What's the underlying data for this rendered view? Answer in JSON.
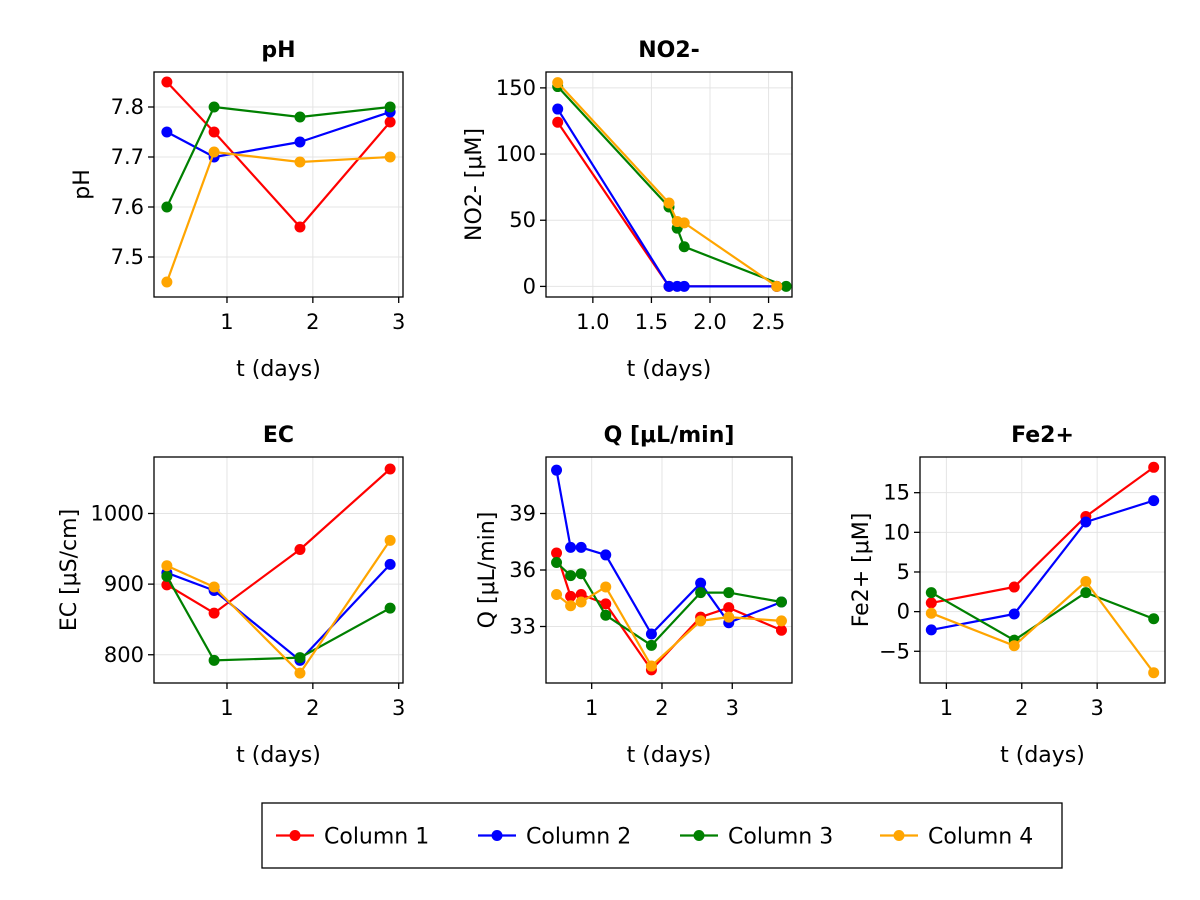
{
  "legend": {
    "placement": "bottom-center",
    "entries": [
      {
        "label": "Column 1",
        "color": "#ff0000"
      },
      {
        "label": "Column 2",
        "color": "#0000ff"
      },
      {
        "label": "Column 3",
        "color": "#008000"
      },
      {
        "label": "Column 4",
        "color": "#ffa500"
      }
    ]
  },
  "chart_data": [
    {
      "type": "line",
      "title": "pH",
      "xlabel": "t (days)",
      "ylabel": "pH",
      "xlim": [
        0.15,
        3.05
      ],
      "ylim": [
        7.42,
        7.87
      ],
      "xticks": [
        {
          "v": 1,
          "label": "1"
        },
        {
          "v": 2,
          "label": "2"
        },
        {
          "v": 3,
          "label": "3"
        }
      ],
      "yticks": [
        {
          "v": 7.5,
          "label": "7.5"
        },
        {
          "v": 7.6,
          "label": "7.6"
        },
        {
          "v": 7.7,
          "label": "7.7"
        },
        {
          "v": 7.8,
          "label": "7.8"
        }
      ],
      "grid": true,
      "series": [
        {
          "name": "Column 1",
          "color": "#ff0000",
          "x": [
            0.3,
            0.85,
            1.85,
            2.9
          ],
          "y": [
            7.85,
            7.75,
            7.56,
            7.77
          ]
        },
        {
          "name": "Column 2",
          "color": "#0000ff",
          "x": [
            0.3,
            0.85,
            1.85,
            2.9
          ],
          "y": [
            7.75,
            7.7,
            7.73,
            7.79
          ]
        },
        {
          "name": "Column 3",
          "color": "#008000",
          "x": [
            0.3,
            0.85,
            1.85,
            2.9
          ],
          "y": [
            7.6,
            7.8,
            7.78,
            7.8
          ]
        },
        {
          "name": "Column 4",
          "color": "#ffa500",
          "x": [
            0.3,
            0.85,
            1.85,
            2.9
          ],
          "y": [
            7.45,
            7.71,
            7.69,
            7.7
          ]
        }
      ]
    },
    {
      "type": "line",
      "title": "NO2-",
      "xlabel": "t (days)",
      "ylabel": "NO2- [μM]",
      "xlim": [
        0.6,
        2.7
      ],
      "ylim": [
        -8,
        162
      ],
      "xticks": [
        {
          "v": 1.0,
          "label": "1.0"
        },
        {
          "v": 1.5,
          "label": "1.5"
        },
        {
          "v": 2.0,
          "label": "2.0"
        },
        {
          "v": 2.5,
          "label": "2.5"
        }
      ],
      "yticks": [
        {
          "v": 0,
          "label": "0"
        },
        {
          "v": 50,
          "label": "50"
        },
        {
          "v": 100,
          "label": "100"
        },
        {
          "v": 150,
          "label": "150"
        }
      ],
      "grid": true,
      "series": [
        {
          "name": "Column 1",
          "color": "#ff0000",
          "x": [
            0.7,
            1.65,
            2.57
          ],
          "y": [
            124,
            0,
            0
          ]
        },
        {
          "name": "Column 2",
          "color": "#0000ff",
          "x": [
            0.7,
            1.65,
            1.72,
            1.78,
            2.57
          ],
          "y": [
            134,
            0,
            0,
            0,
            0
          ]
        },
        {
          "name": "Column 3",
          "color": "#008000",
          "x": [
            0.7,
            1.65,
            1.72,
            1.78,
            2.65
          ],
          "y": [
            151,
            60,
            44,
            30,
            0
          ]
        },
        {
          "name": "Column 4",
          "color": "#ffa500",
          "x": [
            0.7,
            1.65,
            1.72,
            1.78,
            2.57
          ],
          "y": [
            154,
            63,
            49,
            48,
            0
          ]
        }
      ]
    },
    {
      "type": "line",
      "title": "EC",
      "xlabel": "t (days)",
      "ylabel": "EC [μS/cm]",
      "xlim": [
        0.15,
        3.05
      ],
      "ylim": [
        760,
        1080
      ],
      "xticks": [
        {
          "v": 1,
          "label": "1"
        },
        {
          "v": 2,
          "label": "2"
        },
        {
          "v": 3,
          "label": "3"
        }
      ],
      "yticks": [
        {
          "v": 800,
          "label": "800"
        },
        {
          "v": 900,
          "label": "900"
        },
        {
          "v": 1000,
          "label": "1000"
        }
      ],
      "grid": true,
      "series": [
        {
          "name": "Column 1",
          "color": "#ff0000",
          "x": [
            0.3,
            0.85,
            1.85,
            2.9
          ],
          "y": [
            899,
            859,
            949,
            1063
          ]
        },
        {
          "name": "Column 2",
          "color": "#0000ff",
          "x": [
            0.3,
            0.85,
            1.85,
            2.9
          ],
          "y": [
            916,
            891,
            792,
            928
          ]
        },
        {
          "name": "Column 3",
          "color": "#008000",
          "x": [
            0.3,
            0.85,
            1.85,
            2.9
          ],
          "y": [
            911,
            792,
            796,
            866
          ]
        },
        {
          "name": "Column 4",
          "color": "#ffa500",
          "x": [
            0.3,
            0.85,
            1.85,
            2.9
          ],
          "y": [
            926,
            896,
            774,
            962
          ]
        }
      ]
    },
    {
      "type": "line",
      "title": "Q [μL/min]",
      "xlabel": "t (days)",
      "ylabel": "Q [μL/min]",
      "xlim": [
        0.35,
        3.85
      ],
      "ylim": [
        30.0,
        42.0
      ],
      "xticks": [
        {
          "v": 1,
          "label": "1"
        },
        {
          "v": 2,
          "label": "2"
        },
        {
          "v": 3,
          "label": "3"
        }
      ],
      "yticks": [
        {
          "v": 33,
          "label": "33"
        },
        {
          "v": 36,
          "label": "36"
        },
        {
          "v": 39,
          "label": "39"
        }
      ],
      "grid": true,
      "series": [
        {
          "name": "Column 1",
          "color": "#ff0000",
          "x": [
            0.5,
            0.7,
            0.85,
            1.2,
            1.85,
            2.55,
            2.95,
            3.7
          ],
          "y": [
            36.9,
            34.6,
            34.7,
            34.2,
            30.7,
            33.5,
            34.0,
            32.8
          ]
        },
        {
          "name": "Column 2",
          "color": "#0000ff",
          "x": [
            0.5,
            0.7,
            0.85,
            1.2,
            1.85,
            2.55,
            2.95,
            3.7
          ],
          "y": [
            41.3,
            37.2,
            37.2,
            36.8,
            32.6,
            35.3,
            33.2,
            34.3
          ]
        },
        {
          "name": "Column 3",
          "color": "#008000",
          "x": [
            0.5,
            0.7,
            0.85,
            1.2,
            1.85,
            2.55,
            2.95,
            3.7
          ],
          "y": [
            36.4,
            35.7,
            35.8,
            33.6,
            32.0,
            34.8,
            34.8,
            34.3
          ]
        },
        {
          "name": "Column 4",
          "color": "#ffa500",
          "x": [
            0.5,
            0.7,
            0.85,
            1.2,
            1.85,
            2.55,
            2.95,
            3.7
          ],
          "y": [
            34.7,
            34.1,
            34.3,
            35.1,
            30.9,
            33.3,
            33.5,
            33.3
          ]
        }
      ]
    },
    {
      "type": "line",
      "title": "Fe2+",
      "xlabel": "t (days)",
      "ylabel": "Fe2+ [μM]",
      "xlim": [
        0.65,
        3.9
      ],
      "ylim": [
        -9,
        19.5
      ],
      "xticks": [
        {
          "v": 1,
          "label": "1"
        },
        {
          "v": 2,
          "label": "2"
        },
        {
          "v": 3,
          "label": "3"
        }
      ],
      "yticks": [
        {
          "v": -5,
          "label": "−5"
        },
        {
          "v": 0,
          "label": "0"
        },
        {
          "v": 5,
          "label": "5"
        },
        {
          "v": 10,
          "label": "10"
        },
        {
          "v": 15,
          "label": "15"
        }
      ],
      "grid": true,
      "series": [
        {
          "name": "Column 1",
          "color": "#ff0000",
          "x": [
            0.8,
            1.9,
            2.85,
            3.75
          ],
          "y": [
            1.1,
            3.1,
            12.0,
            18.2
          ]
        },
        {
          "name": "Column 2",
          "color": "#0000ff",
          "x": [
            0.8,
            1.9,
            2.85,
            3.75
          ],
          "y": [
            -2.3,
            -0.3,
            11.3,
            14.0
          ]
        },
        {
          "name": "Column 3",
          "color": "#008000",
          "x": [
            0.8,
            1.9,
            2.85,
            3.75
          ],
          "y": [
            2.4,
            -3.6,
            2.4,
            -0.9
          ]
        },
        {
          "name": "Column 4",
          "color": "#ffa500",
          "x": [
            0.8,
            1.9,
            2.85,
            3.75
          ],
          "y": [
            -0.2,
            -4.3,
            3.8,
            -7.7
          ]
        }
      ]
    }
  ]
}
